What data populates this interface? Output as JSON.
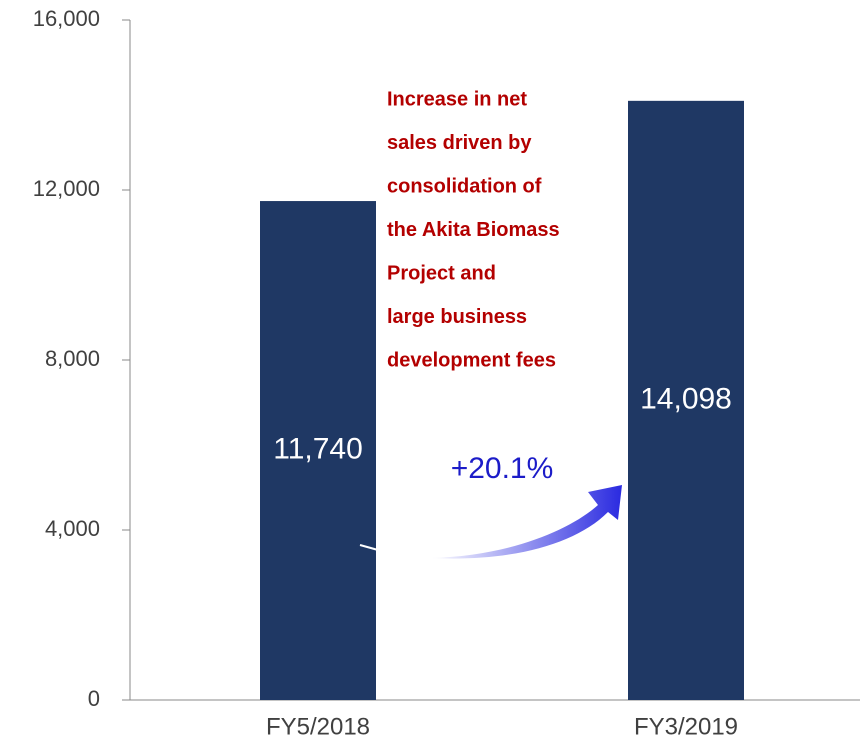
{
  "chart_data": {
    "type": "bar",
    "categories": [
      "FY5/2018",
      "FY3/2019"
    ],
    "values": [
      11740,
      14098
    ],
    "value_labels": [
      "11,740",
      "14,098"
    ],
    "color": "#1f3864",
    "ylim": [
      0,
      16000
    ],
    "yticks": [
      0,
      {
        "value": 4000,
        "label": "4,000"
      },
      {
        "value": 8000,
        "label": "8,000"
      },
      {
        "value": 12000,
        "label": "12,000"
      },
      {
        "value": 16000,
        "label": "16,000"
      }
    ],
    "annotation": [
      "Increase in net",
      "sales driven by",
      "consolidation of",
      "the Akita Biomass",
      "Project and",
      "large business",
      "development fees"
    ],
    "change_label": "+20.1%"
  }
}
